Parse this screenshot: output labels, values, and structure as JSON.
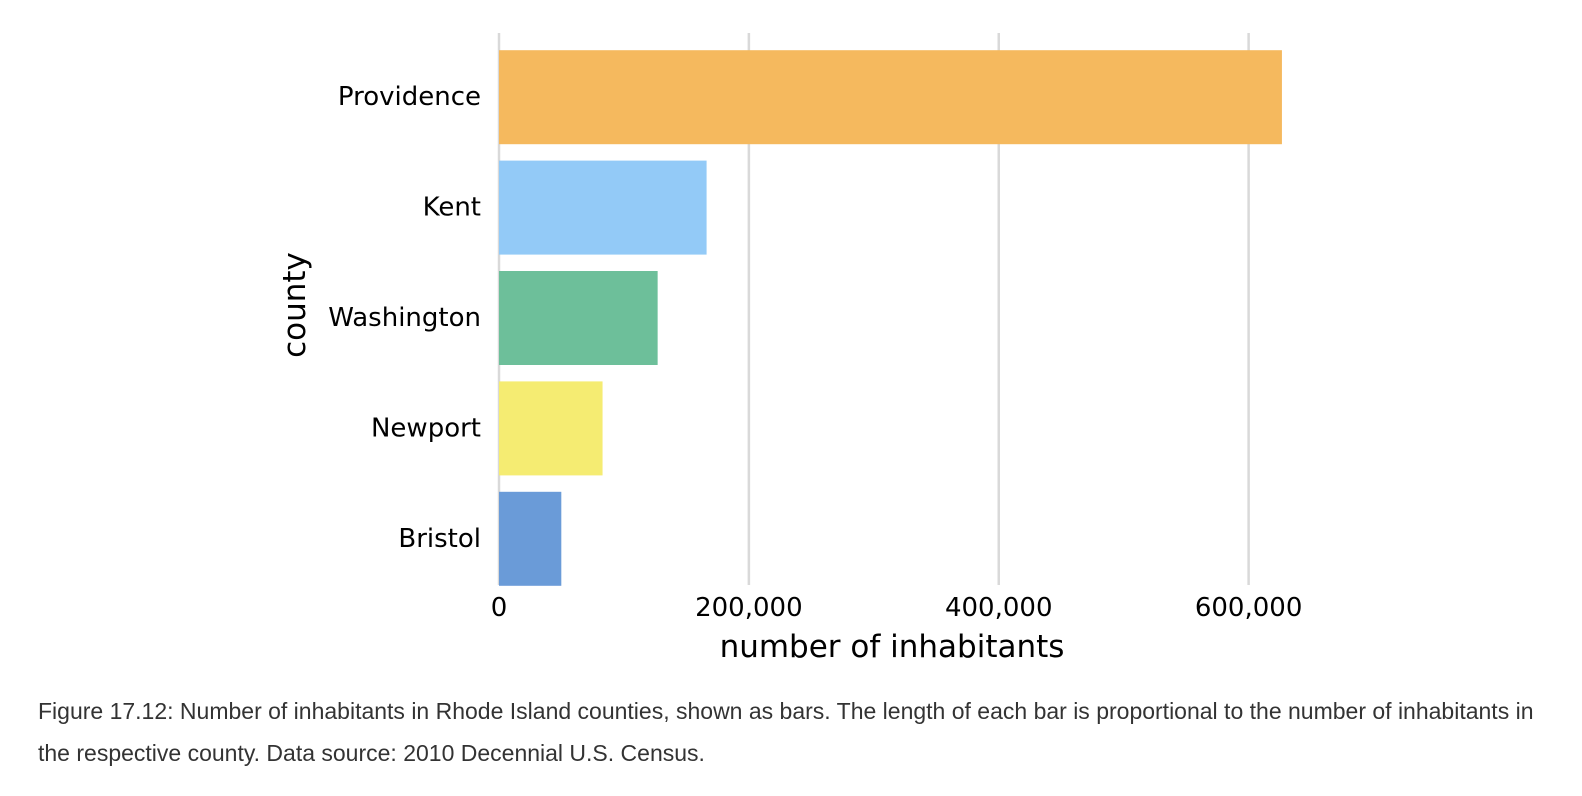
{
  "chart_data": {
    "type": "bar",
    "orientation": "horizontal",
    "categories": [
      "Providence",
      "Kent",
      "Washington",
      "Newport",
      "Bristol"
    ],
    "values": [
      626667,
      166158,
      126979,
      82888,
      49875
    ],
    "colors": [
      "#F5B95E",
      "#93CAF7",
      "#6DBF9A",
      "#F5EC72",
      "#6A9BD8"
    ],
    "xlabel": "number of inhabitants",
    "ylabel": "county",
    "xlim": [
      0,
      790000
    ],
    "xticks": [
      0,
      200000,
      400000,
      600000
    ],
    "xtick_labels": [
      "0",
      "200,000",
      "400,000",
      "600,000"
    ],
    "grid": "vertical",
    "gridline_color": "#d9d9d9"
  },
  "caption": "Figure 17.12: Number of inhabitants in Rhode Island counties, shown as bars. The length of each bar is proportional to the number of inhabitants in the respective county. Data source: 2010 Decennial U.S. Census."
}
